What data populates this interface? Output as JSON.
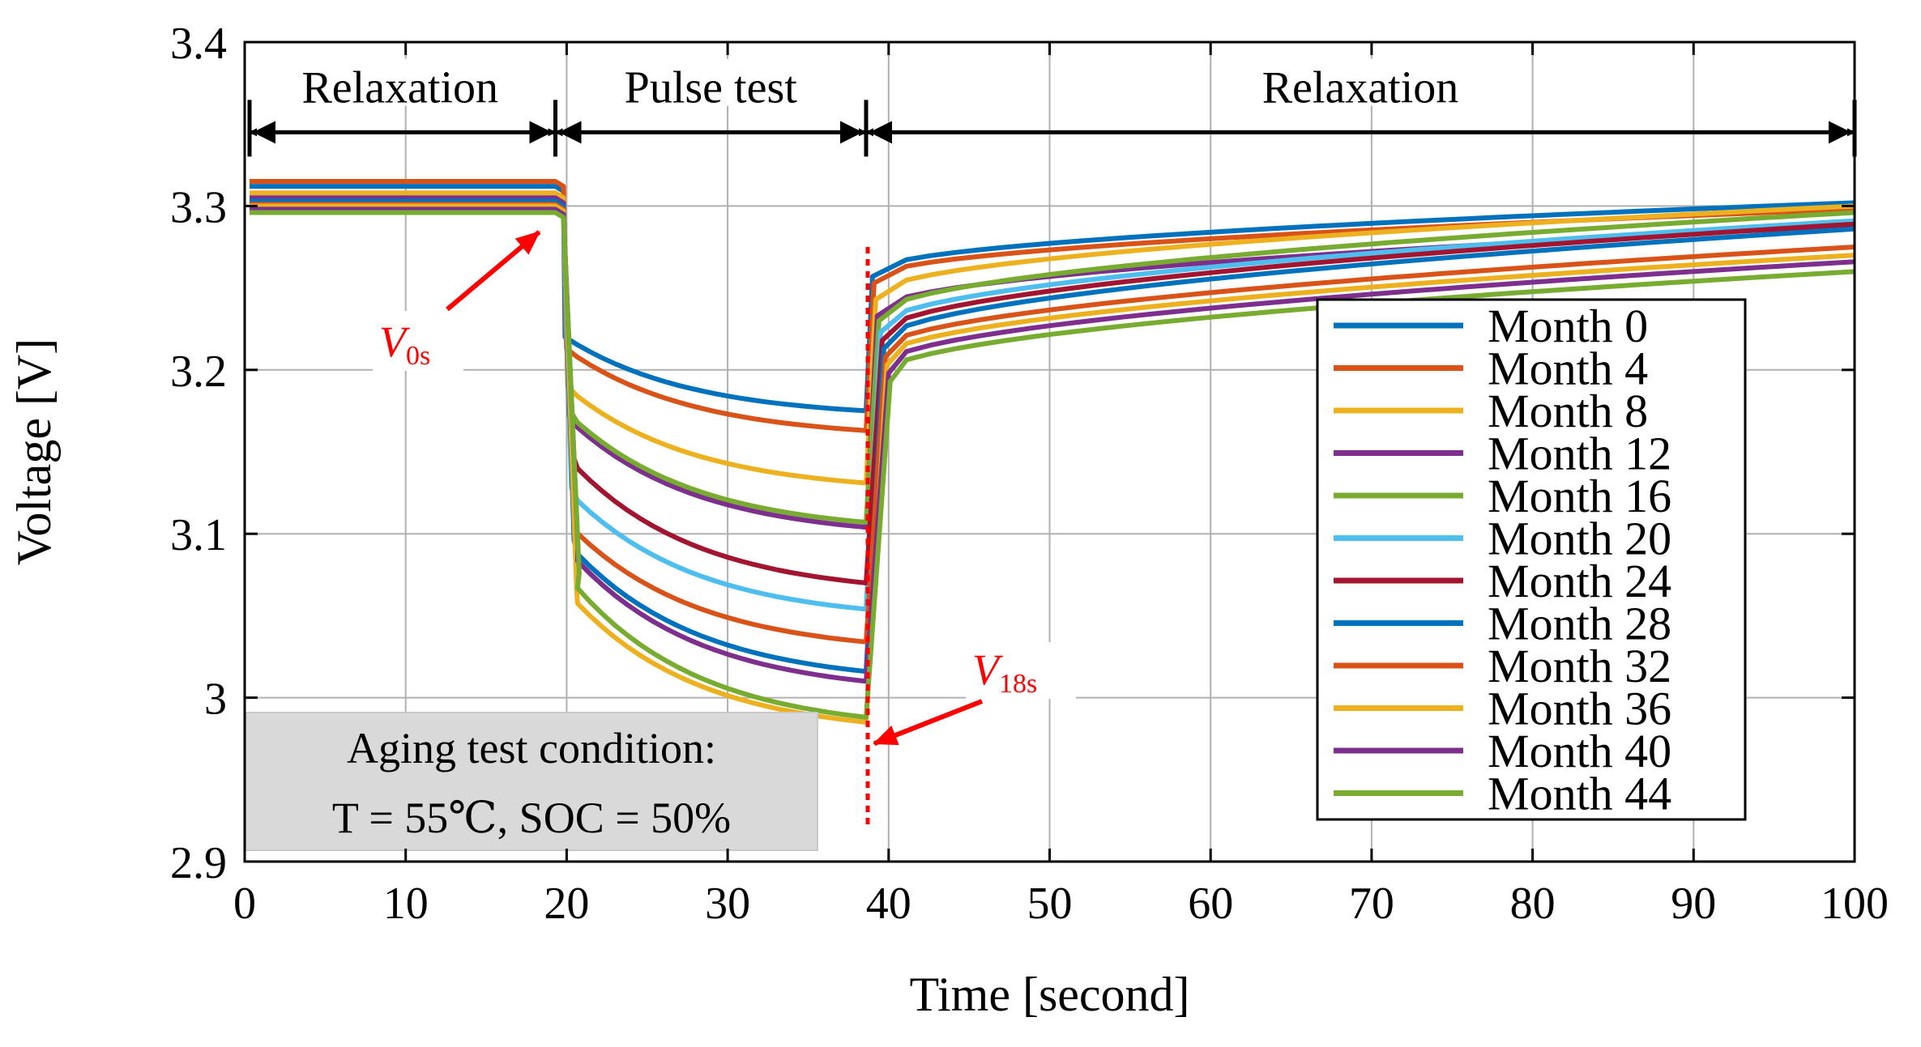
{
  "chart_data": {
    "type": "line",
    "xlabel": "Time [second]",
    "ylabel": "Voltage [V]",
    "xlim": [
      0,
      100
    ],
    "ylim": [
      2.9,
      3.4
    ],
    "xticks": [
      0,
      10,
      20,
      30,
      40,
      50,
      60,
      70,
      80,
      90,
      100
    ],
    "yticks": [
      2.9,
      3.0,
      3.1,
      3.2,
      3.3,
      3.4
    ],
    "xtick_labels": [
      "0",
      "10",
      "20",
      "30",
      "40",
      "50",
      "60",
      "70",
      "80",
      "90",
      "100"
    ],
    "ytick_labels": [
      "2.9",
      "3",
      "3.1",
      "3.2",
      "3.3",
      "3.4"
    ],
    "grid": true,
    "legend_position": "right",
    "phases": [
      {
        "label": "Relaxation",
        "start": 0,
        "end": 19.3
      },
      {
        "label": "Pulse test",
        "start": 19.3,
        "end": 38.6
      },
      {
        "label": "Relaxation",
        "start": 38.6,
        "end": 100
      }
    ],
    "annotations": {
      "v0s": {
        "base": "V",
        "sub": "0s",
        "time": 19.3
      },
      "v18s": {
        "base": "V",
        "sub": "18s",
        "time": 38.6
      },
      "condition_box": {
        "line1": "Aging test condition:",
        "line2": "T = 55℃, SOC = 50%"
      }
    },
    "colors": {
      "annotation": "#ff0000",
      "axis": "#000000",
      "grid": "#b0b0b0",
      "box": "#d9d9d9"
    },
    "series": [
      {
        "name": "Month 0",
        "color": "#0072BD",
        "v_rest": 3.312,
        "v_drop": 3.22,
        "v_pulse_end": 3.175,
        "v_recover": 3.262,
        "v_final": 3.302
      },
      {
        "name": "Month 4",
        "color": "#D95319",
        "v_rest": 3.315,
        "v_drop": 3.213,
        "v_pulse_end": 3.163,
        "v_recover": 3.258,
        "v_final": 3.298
      },
      {
        "name": "Month 8",
        "color": "#EDB120",
        "v_rest": 3.308,
        "v_drop": 3.19,
        "v_pulse_end": 3.131,
        "v_recover": 3.248,
        "v_final": 3.3
      },
      {
        "name": "Month 12",
        "color": "#7E2F8E",
        "v_rest": 3.305,
        "v_drop": 3.172,
        "v_pulse_end": 3.104,
        "v_recover": 3.238,
        "v_final": 3.288
      },
      {
        "name": "Month 16",
        "color": "#77AC30",
        "v_rest": 3.302,
        "v_drop": 3.175,
        "v_pulse_end": 3.107,
        "v_recover": 3.235,
        "v_final": 3.296
      },
      {
        "name": "Month 20",
        "color": "#4DBEEE",
        "v_rest": 3.3,
        "v_drop": 3.128,
        "v_pulse_end": 3.054,
        "v_recover": 3.228,
        "v_final": 3.291
      },
      {
        "name": "Month 24",
        "color": "#A2142F",
        "v_rest": 3.299,
        "v_drop": 3.148,
        "v_pulse_end": 3.07,
        "v_recover": 3.223,
        "v_final": 3.289
      },
      {
        "name": "Month 28",
        "color": "#0072BD",
        "v_rest": 3.303,
        "v_drop": 3.096,
        "v_pulse_end": 3.016,
        "v_recover": 3.218,
        "v_final": 3.286
      },
      {
        "name": "Month 32",
        "color": "#D95319",
        "v_rest": 3.301,
        "v_drop": 3.108,
        "v_pulse_end": 3.034,
        "v_recover": 3.213,
        "v_final": 3.275
      },
      {
        "name": "Month 36",
        "color": "#EDB120",
        "v_rest": 3.3,
        "v_drop": 3.066,
        "v_pulse_end": 2.985,
        "v_recover": 3.208,
        "v_final": 3.27
      },
      {
        "name": "Month 40",
        "color": "#7E2F8E",
        "v_rest": 3.298,
        "v_drop": 3.092,
        "v_pulse_end": 3.01,
        "v_recover": 3.203,
        "v_final": 3.266
      },
      {
        "name": "Month 44",
        "color": "#77AC30",
        "v_rest": 3.296,
        "v_drop": 3.076,
        "v_pulse_end": 2.988,
        "v_recover": 3.198,
        "v_final": 3.26
      }
    ]
  }
}
